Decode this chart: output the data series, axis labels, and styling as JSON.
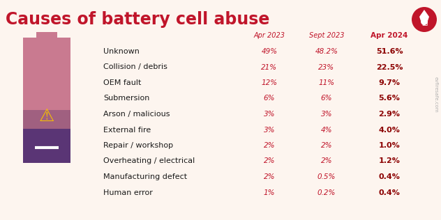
{
  "title": "Causes of battery cell abuse",
  "title_color": "#c0152a",
  "title_fontsize": 17,
  "bg_color": "#fdf5ef",
  "categories": [
    "Unknown",
    "Collision / debris",
    "OEM fault",
    "Submersion",
    "Arson / malicious",
    "External fire",
    "Repair / workshop",
    "Overheating / electrical",
    "Manufacturing defect",
    "Human error"
  ],
  "col_headers": [
    "Apr 2023",
    "Sept 2023",
    "Apr 2024"
  ],
  "col_header_color": "#c0152a",
  "apr2023": [
    "49%",
    "21%",
    "12%",
    "6%",
    "3%",
    "3%",
    "2%",
    "2%",
    "2%",
    "1%"
  ],
  "sept2023": [
    "48.2%",
    "23%",
    "11%",
    "6%",
    "3%",
    "4%",
    "2%",
    "2%",
    "0.5%",
    "0.2%"
  ],
  "apr2024": [
    "51.6%",
    "22.5%",
    "9.7%",
    "5.6%",
    "2.9%",
    "4.0%",
    "1.0%",
    "1.2%",
    "0.4%",
    "0.4%"
  ],
  "battery_pink_color": "#c97a90",
  "battery_mauve_color": "#a06080",
  "battery_purple_color": "#5a3575",
  "text_color_black": "#1a1a1a",
  "red_col": "#c0152a",
  "darkred_col": "#8b0000",
  "watermark": "evfiresafe.com",
  "logo_circle_color": "#c0152a"
}
